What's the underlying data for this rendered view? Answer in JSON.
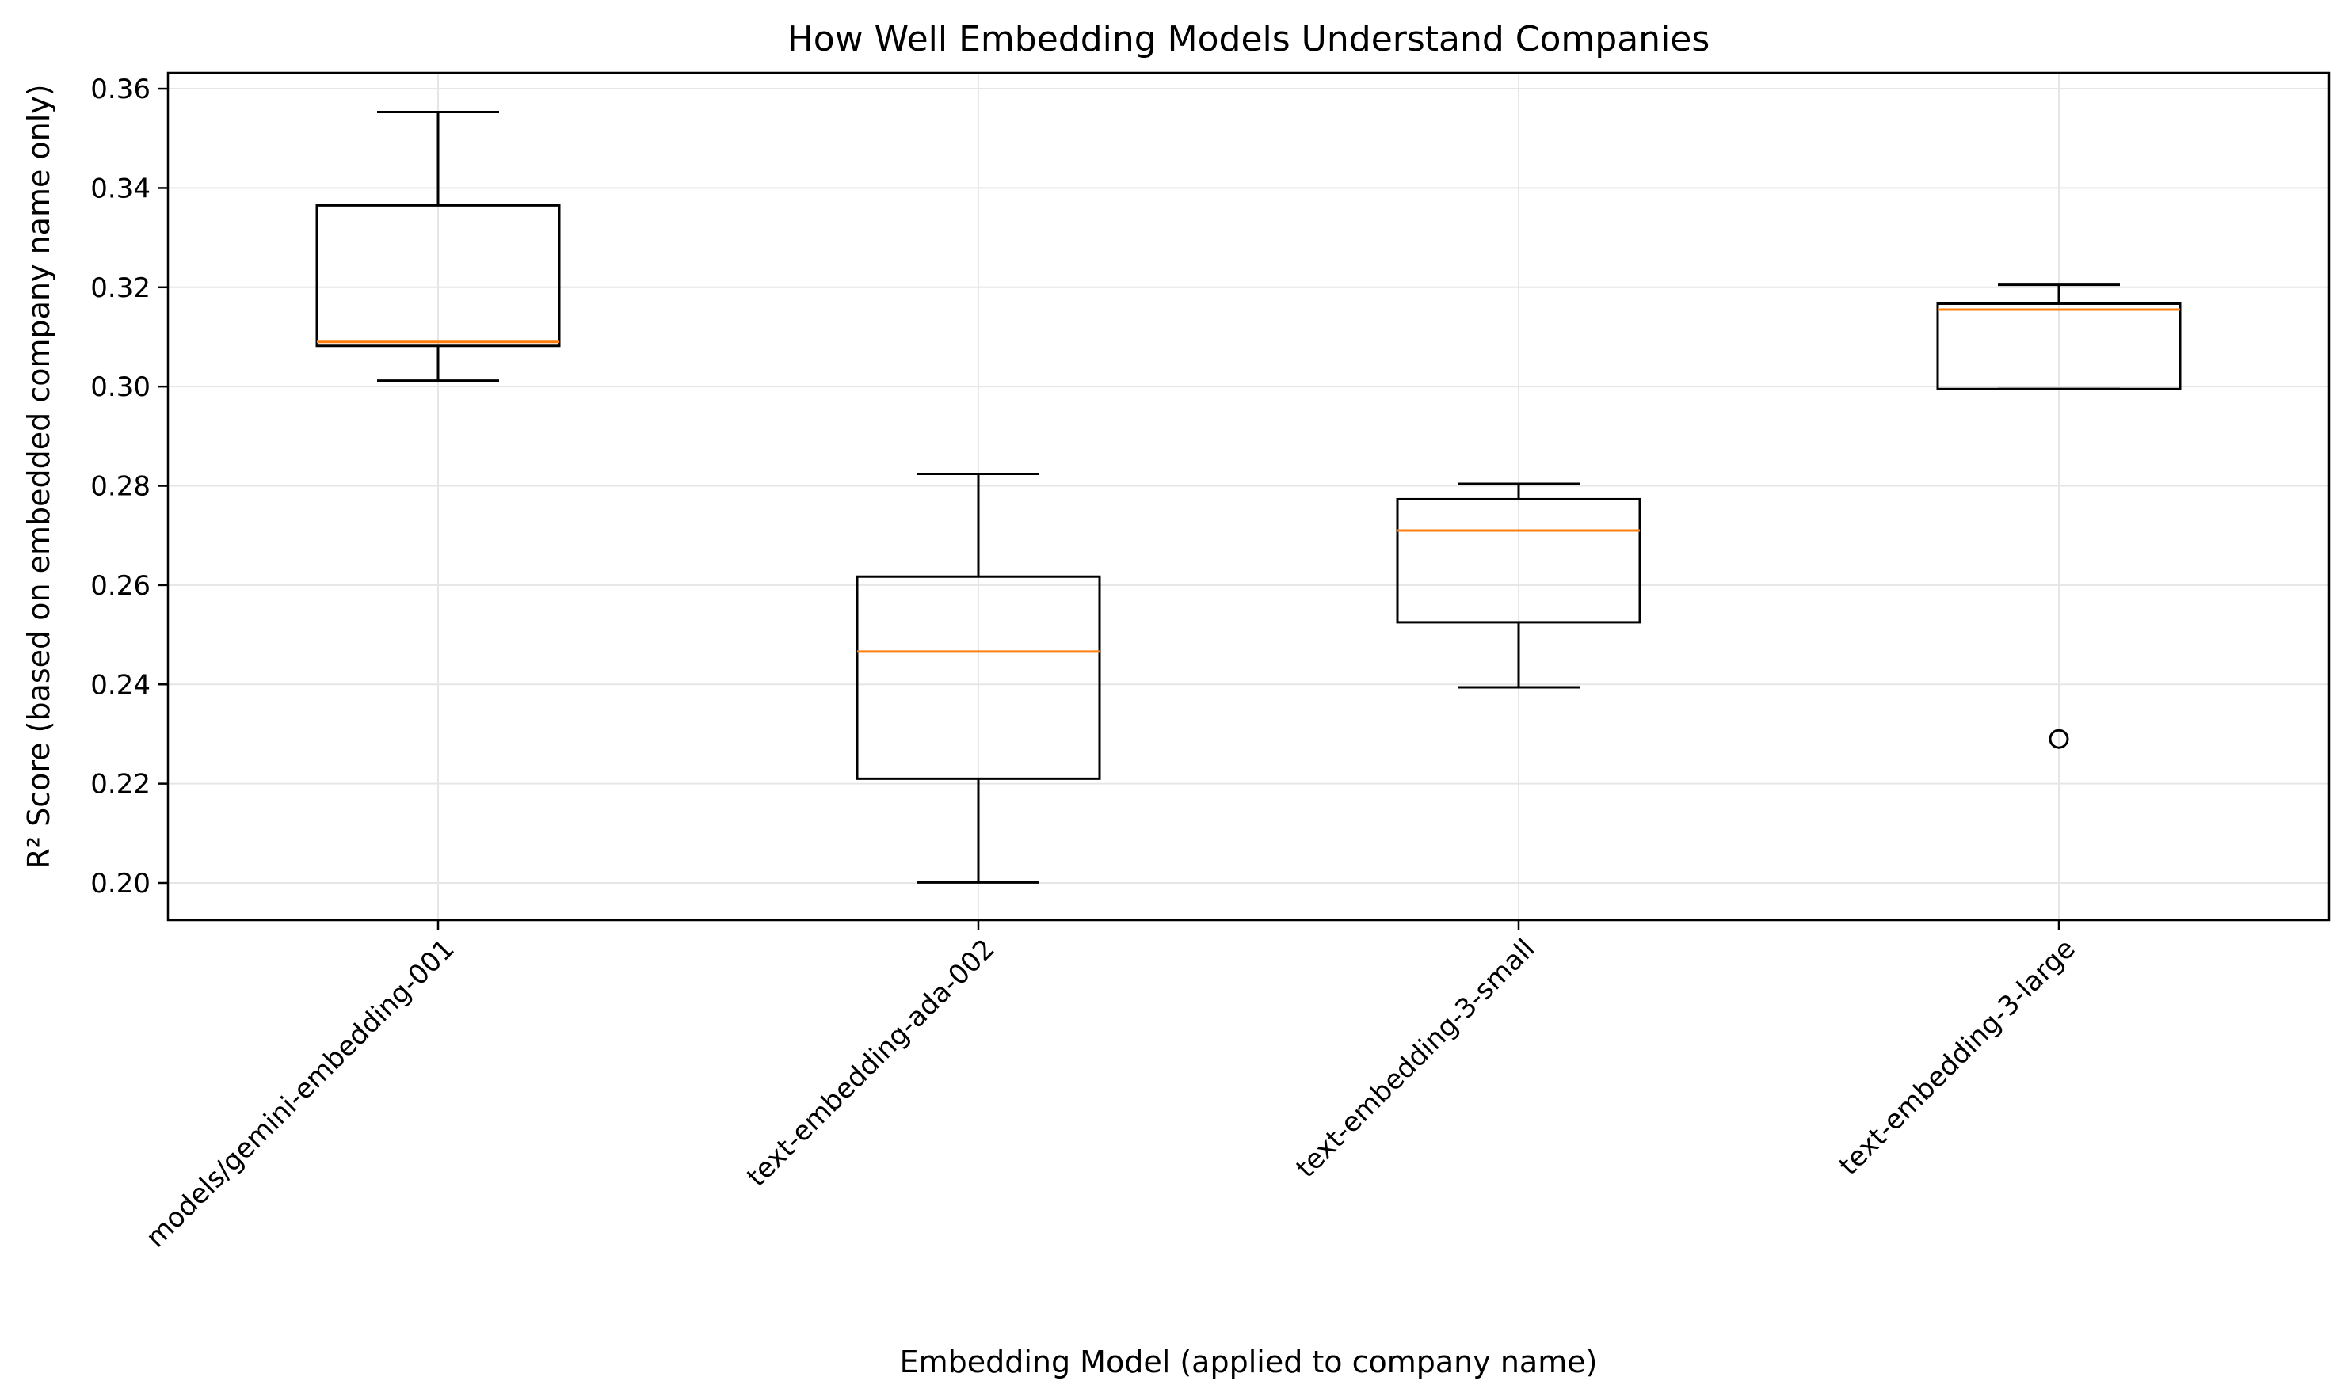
{
  "chart_data": {
    "type": "box",
    "title": "How Well Embedding Models Understand Companies",
    "xlabel": "Embedding Model (applied to company name)",
    "ylabel": "R² Score (based on embedded company name only)",
    "ylim": [
      0.1925,
      0.3632
    ],
    "yticks": [
      0.2,
      0.22,
      0.24,
      0.26,
      0.28,
      0.3,
      0.32,
      0.34,
      0.36
    ],
    "ytick_labels": [
      "0.20",
      "0.22",
      "0.24",
      "0.26",
      "0.28",
      "0.30",
      "0.32",
      "0.34",
      "0.36"
    ],
    "grid": true,
    "categories": [
      "models/gemini-embedding-001",
      "text-embedding-ada-002",
      "text-embedding-3-small",
      "text-embedding-3-large"
    ],
    "boxes": [
      {
        "whisker_low": 0.3012,
        "q1": 0.3082,
        "median": 0.309,
        "q3": 0.3365,
        "whisker_high": 0.3553,
        "outliers": []
      },
      {
        "whisker_low": 0.2001,
        "q1": 0.221,
        "median": 0.2466,
        "q3": 0.2617,
        "whisker_high": 0.2824,
        "outliers": []
      },
      {
        "whisker_low": 0.2394,
        "q1": 0.2525,
        "median": 0.271,
        "q3": 0.2773,
        "whisker_high": 0.2804,
        "outliers": []
      },
      {
        "whisker_low": 0.2995,
        "q1": 0.2995,
        "median": 0.3155,
        "q3": 0.3167,
        "whisker_high": 0.3205,
        "outliers": [
          0.229
        ]
      }
    ],
    "colors": {
      "box": "#000000",
      "median": "#ff7f0e",
      "grid": "#e6e6e6"
    }
  }
}
